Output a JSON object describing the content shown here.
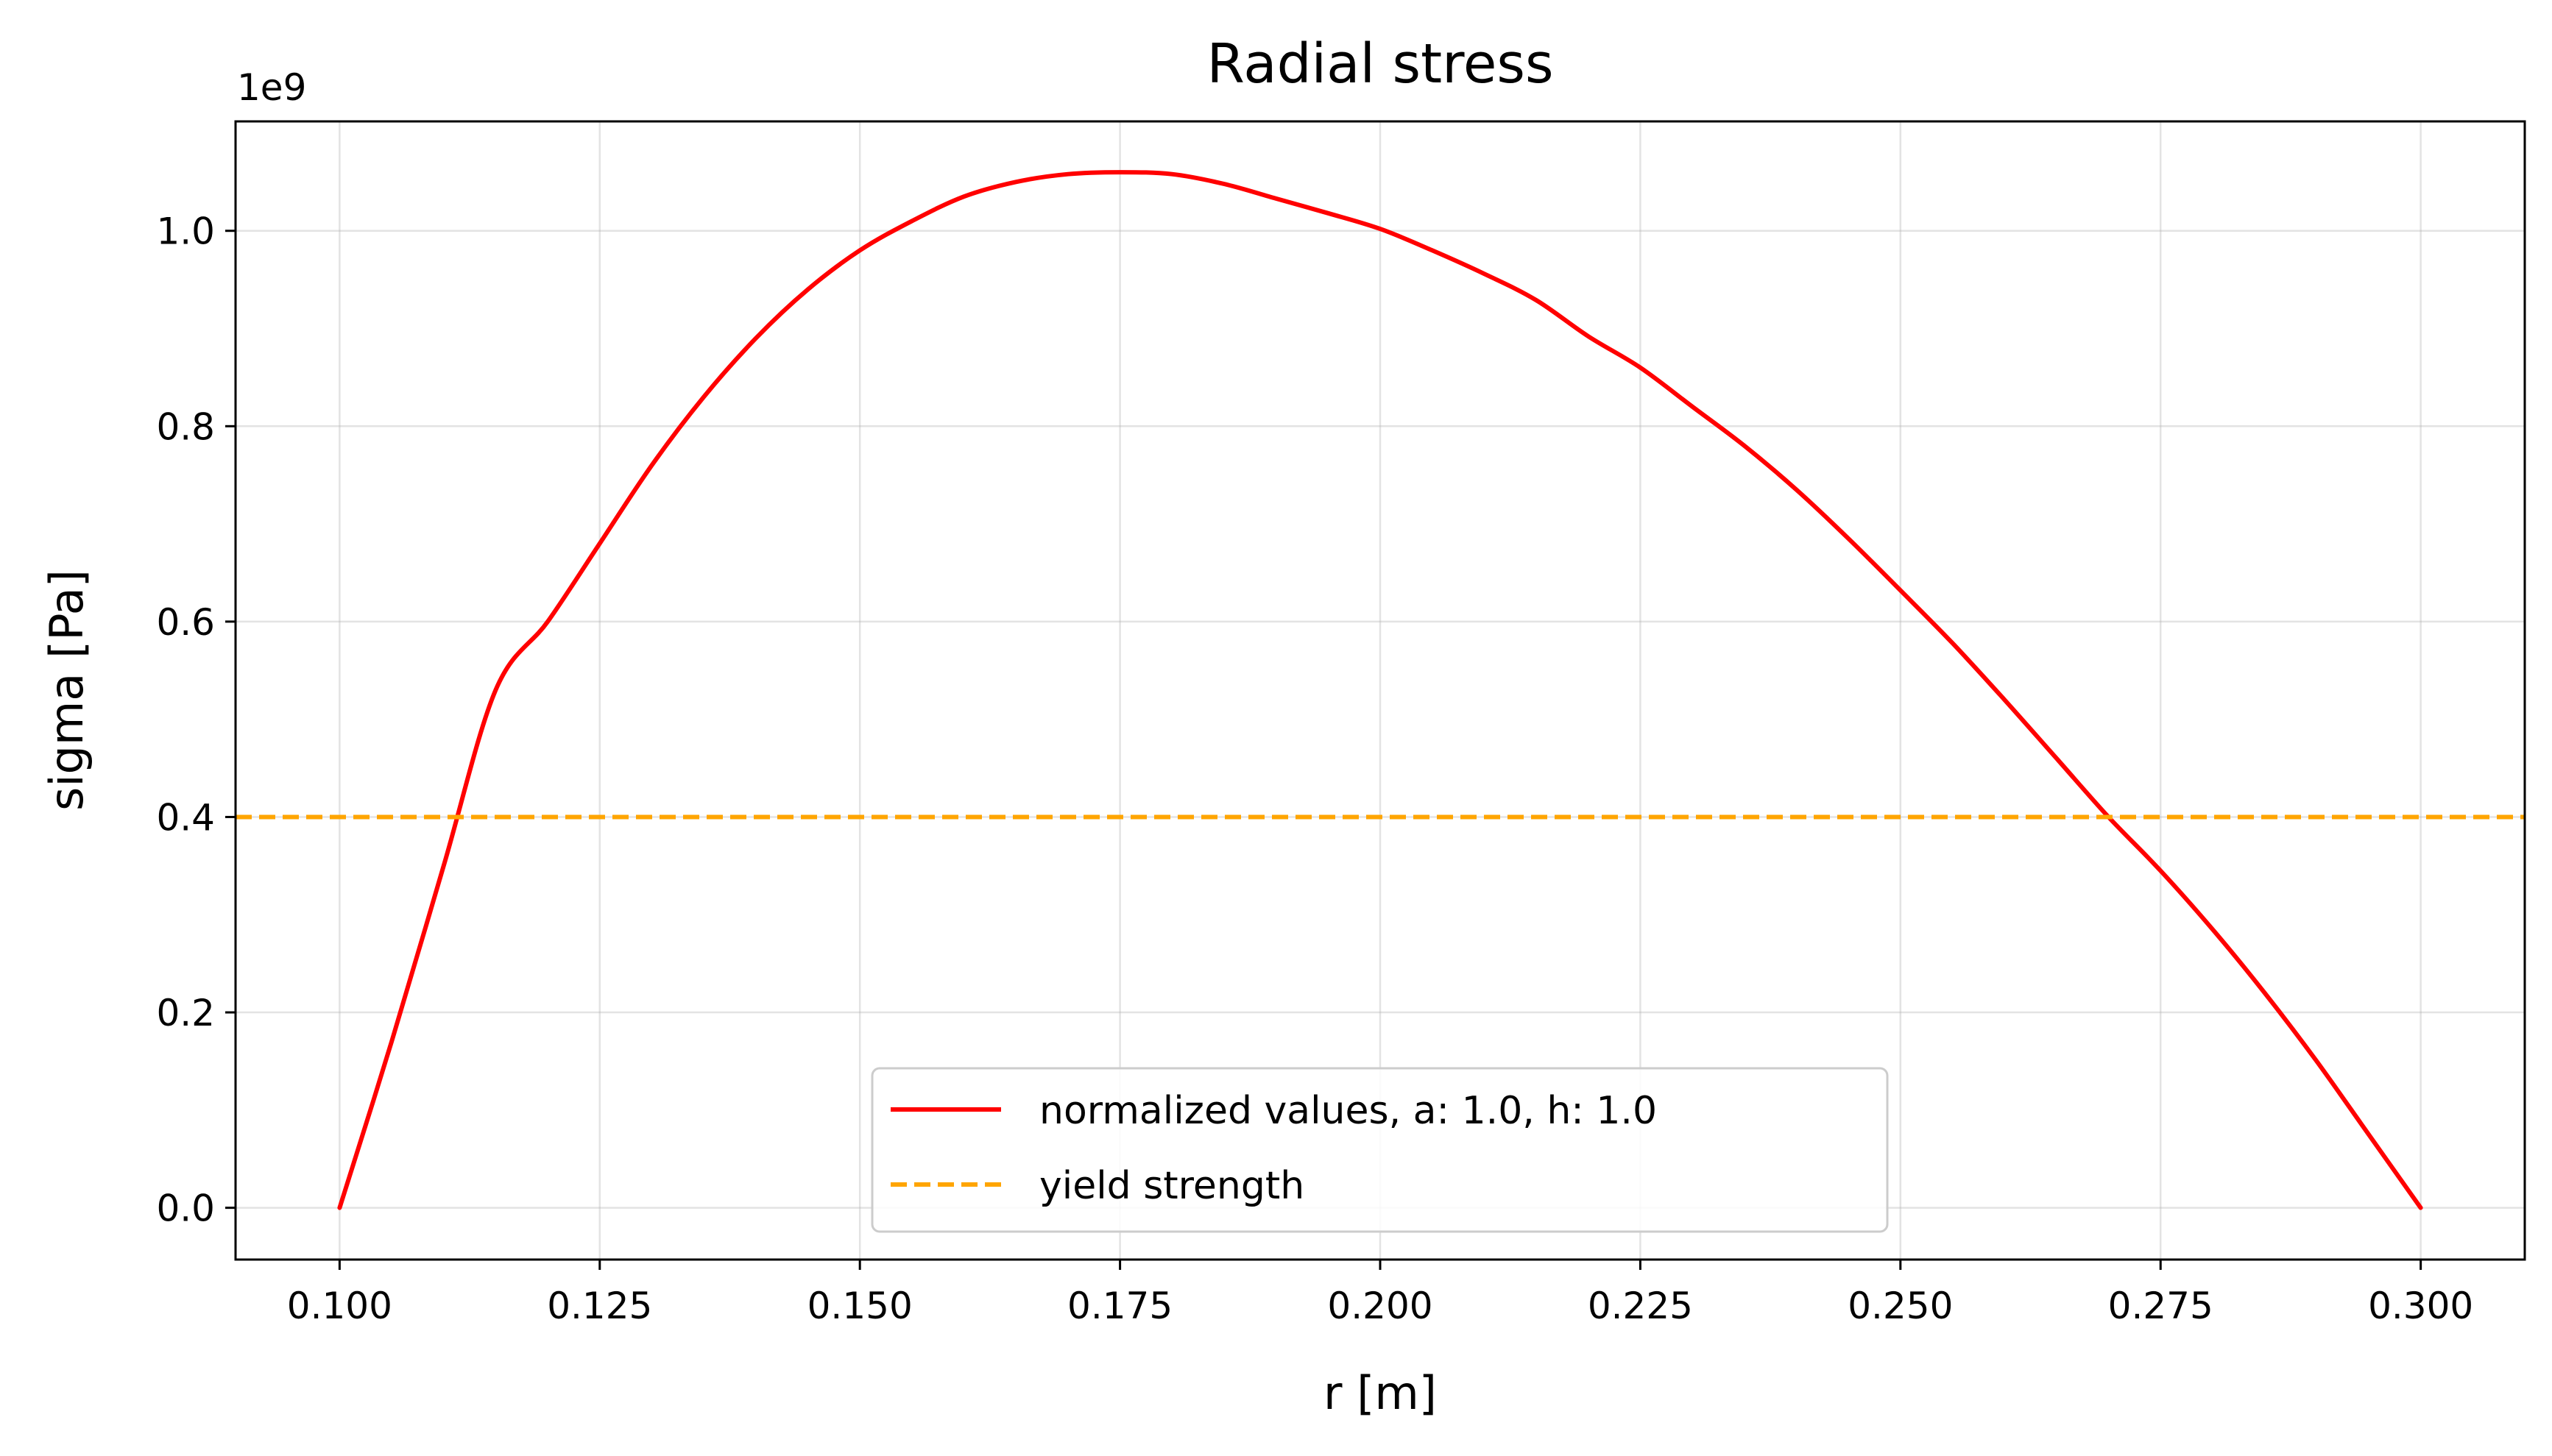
{
  "chart_data": {
    "type": "line",
    "title": "Radial stress",
    "xlabel": "r [m]",
    "ylabel": "sigma [Pa]",
    "y_offset_text": "1e9",
    "xlim": [
      0.09,
      0.31
    ],
    "ylim": [
      -0.053,
      1.112
    ],
    "y_scale_factor": 1000000000,
    "xticks": [
      0.1,
      0.125,
      0.15,
      0.175,
      0.2,
      0.225,
      0.25,
      0.275,
      0.3
    ],
    "xtick_labels": [
      "0.100",
      "0.125",
      "0.150",
      "0.175",
      "0.200",
      "0.225",
      "0.250",
      "0.275",
      "0.300"
    ],
    "yticks": [
      0.0,
      0.2,
      0.4,
      0.6,
      0.8,
      1.0
    ],
    "ytick_labels": [
      "0.0",
      "0.2",
      "0.4",
      "0.6",
      "0.8",
      "1.0"
    ],
    "grid": true,
    "legend_position": "lower center",
    "series": [
      {
        "name": "normalized values, a: 1.0, h: 1.0",
        "color": "#ff0000",
        "style": "solid",
        "x": [
          0.1,
          0.105,
          0.11,
          0.115,
          0.12,
          0.125,
          0.13,
          0.135,
          0.14,
          0.145,
          0.15,
          0.155,
          0.16,
          0.165,
          0.17,
          0.175,
          0.18,
          0.185,
          0.19,
          0.195,
          0.2,
          0.205,
          0.21,
          0.215,
          0.22,
          0.225,
          0.23,
          0.235,
          0.24,
          0.245,
          0.25,
          0.255,
          0.26,
          0.265,
          0.27,
          0.275,
          0.28,
          0.285,
          0.29,
          0.295,
          0.3
        ],
        "y": [
          0.0,
          0.17,
          0.35,
          0.53,
          0.6,
          0.68,
          0.76,
          0.83,
          0.89,
          0.94,
          0.98,
          1.01,
          1.035,
          1.05,
          1.058,
          1.06,
          1.058,
          1.048,
          1.033,
          1.018,
          1.002,
          0.98,
          0.956,
          0.929,
          0.892,
          0.86,
          0.82,
          0.78,
          0.735,
          0.685,
          0.632,
          0.578,
          0.52,
          0.46,
          0.4,
          0.345,
          0.285,
          0.22,
          0.15,
          0.075,
          0.0
        ]
      },
      {
        "name": "yield strength",
        "color": "#ffa500",
        "style": "dashed",
        "x": [
          0.09,
          0.31
        ],
        "y": [
          0.4,
          0.4
        ]
      }
    ]
  }
}
